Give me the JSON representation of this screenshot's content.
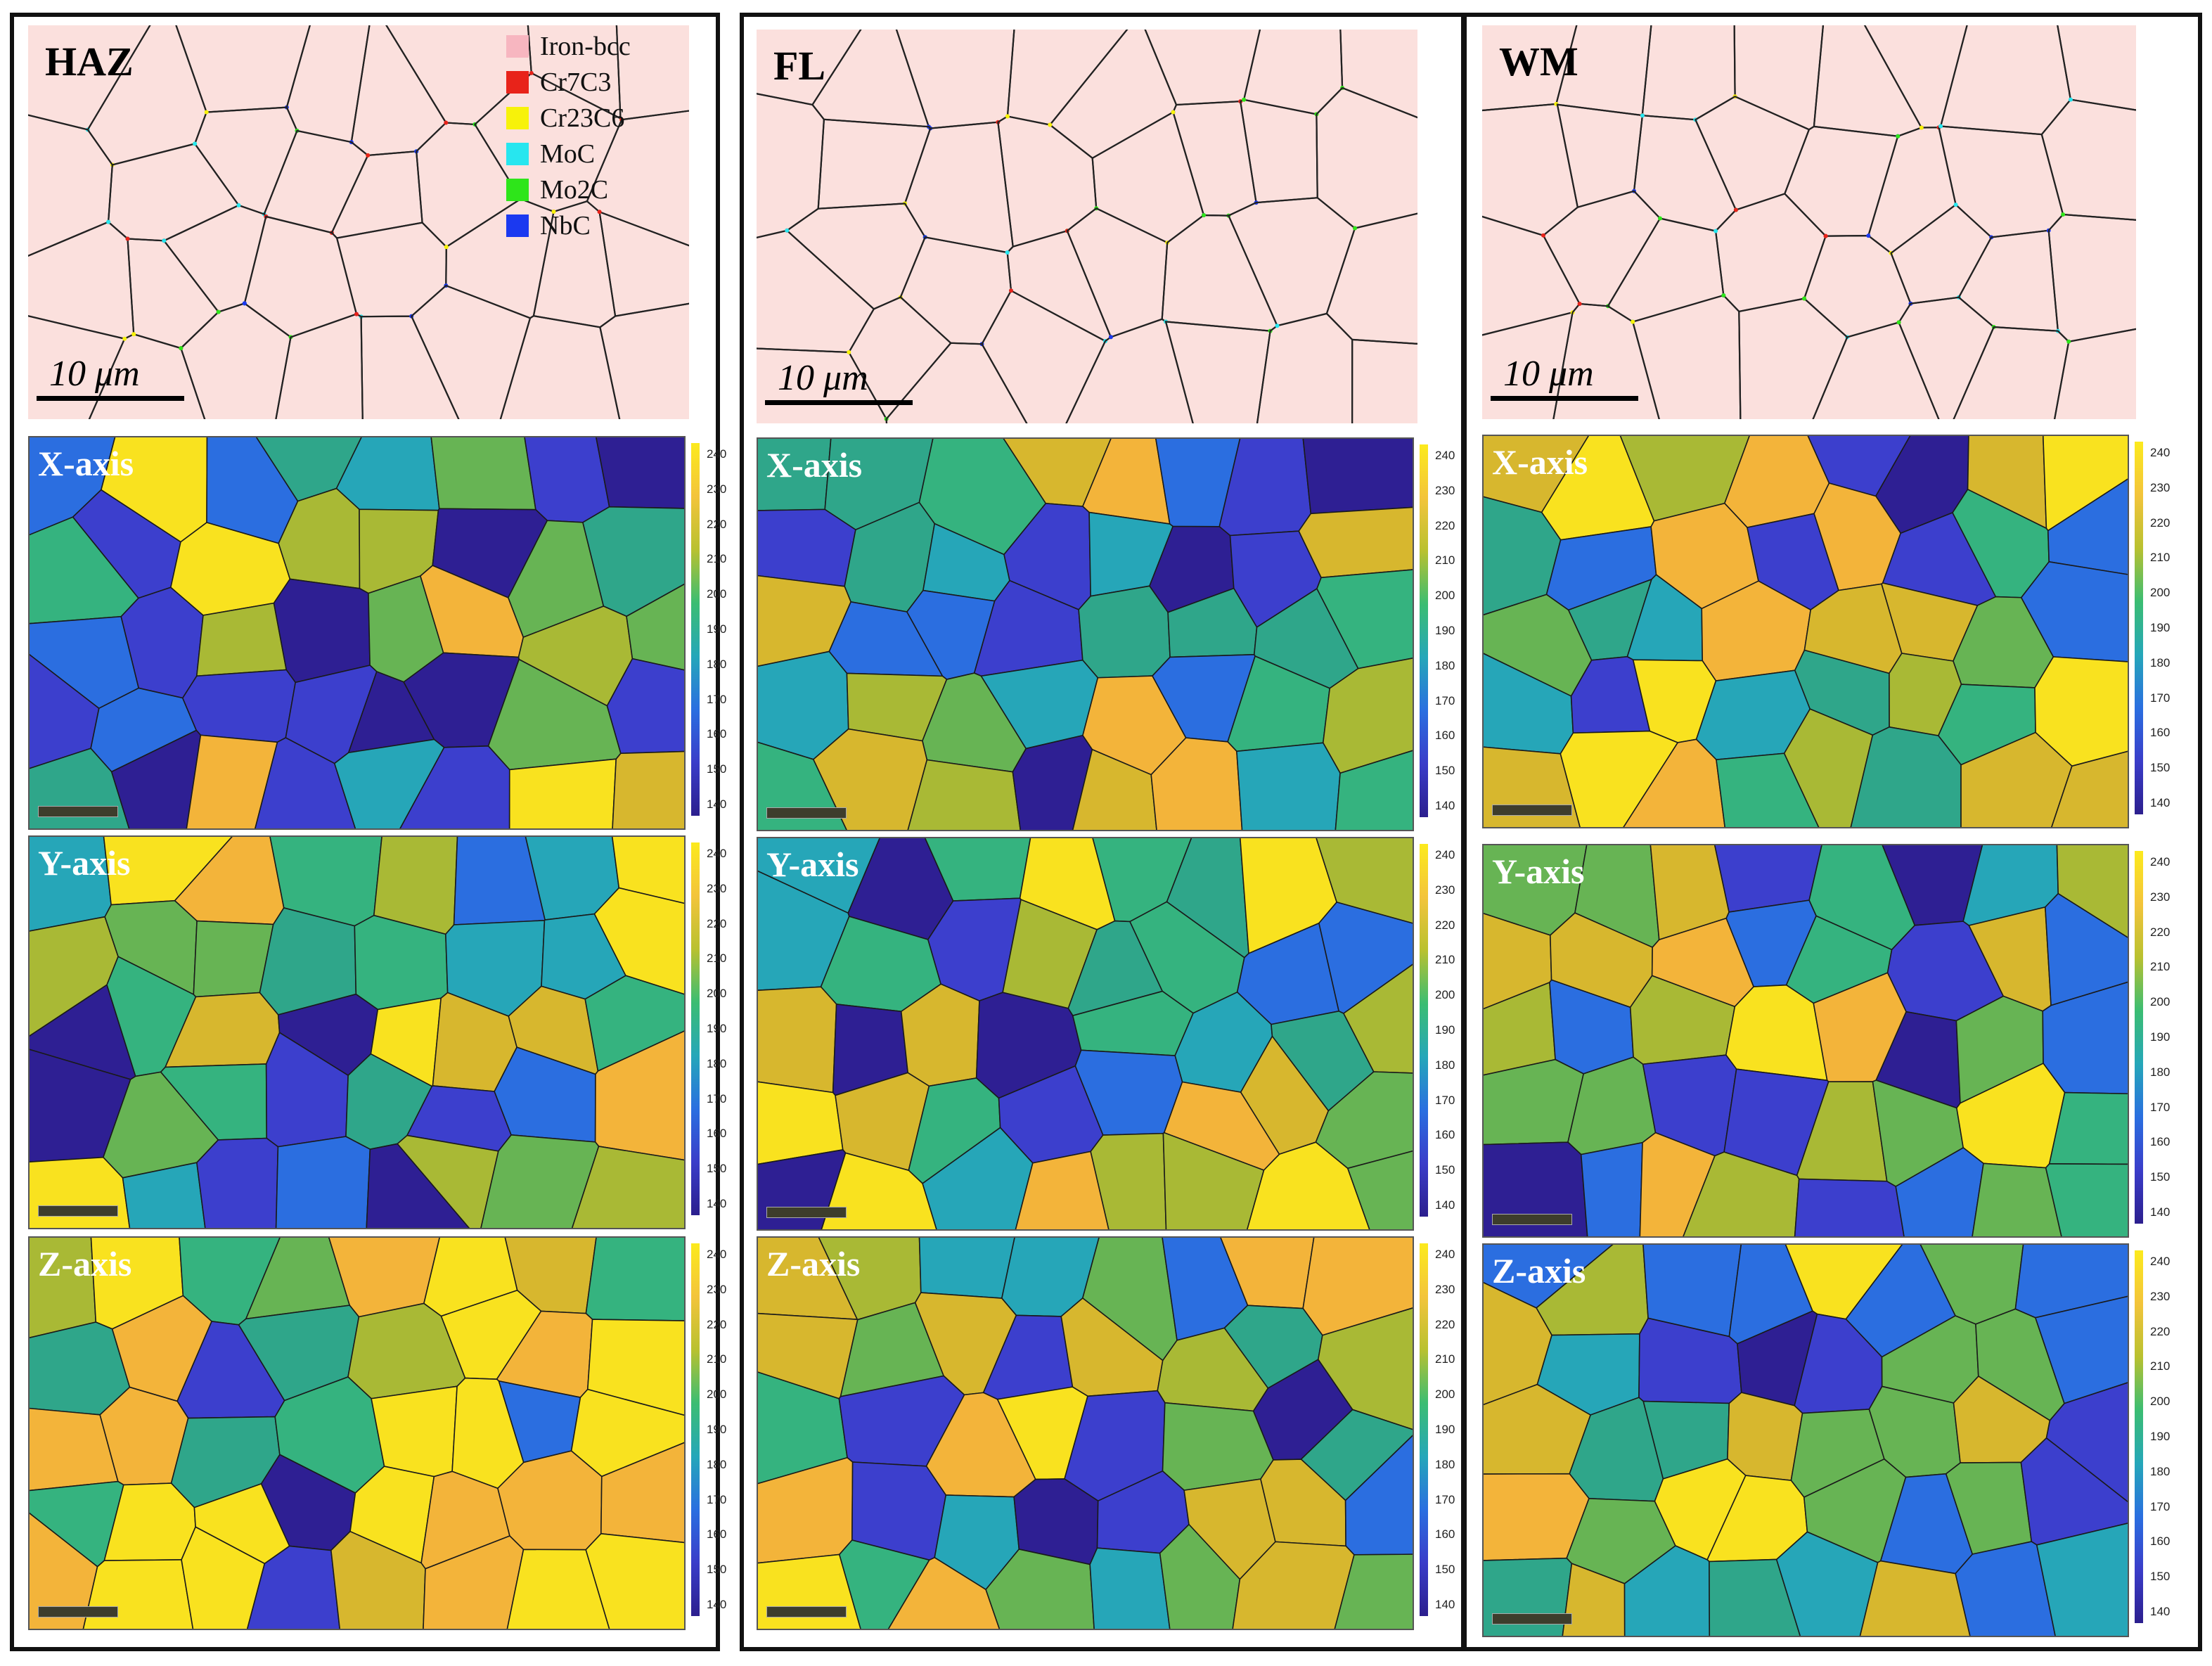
{
  "legend": {
    "items": [
      {
        "name": "Iron-bcc",
        "color": "#f7b6c0"
      },
      {
        "name": "Cr7C3",
        "color": "#e8231a"
      },
      {
        "name": "Cr23C6",
        "color": "#f7f20a"
      },
      {
        "name": "MoC",
        "color": "#27e6ef"
      },
      {
        "name": "Mo2C",
        "color": "#2ee51a"
      },
      {
        "name": "NbC",
        "color": "#1b39f0"
      }
    ]
  },
  "columns": [
    {
      "region": "HAZ",
      "scalebar": "10 μm",
      "axes": [
        "X-axis",
        "Y-axis",
        "Z-axis"
      ]
    },
    {
      "region": "FL",
      "scalebar": "10 μm",
      "axes": [
        "X-axis",
        "Y-axis",
        "Z-axis"
      ]
    },
    {
      "region": "WM",
      "scalebar": "10 μm",
      "axes": [
        "X-axis",
        "Y-axis",
        "Z-axis"
      ]
    }
  ],
  "colorbar": {
    "ticks": [
      "240",
      "230",
      "220",
      "210",
      "200",
      "190",
      "180",
      "170",
      "160",
      "150",
      "140"
    ],
    "min": 140,
    "max": 240
  },
  "palette": [
    "#2e1f93",
    "#3c3fcd",
    "#2b6ee0",
    "#26a6b8",
    "#35b37f",
    "#2fa68a",
    "#67b454",
    "#a9b935",
    "#d7b72e",
    "#f3b43a",
    "#f9e21f"
  ],
  "grain_edge_color": "#222222",
  "precip_colors": [
    "#27e6ef",
    "#1b39f0",
    "#2ee51a",
    "#f7f20a",
    "#e8231a"
  ]
}
